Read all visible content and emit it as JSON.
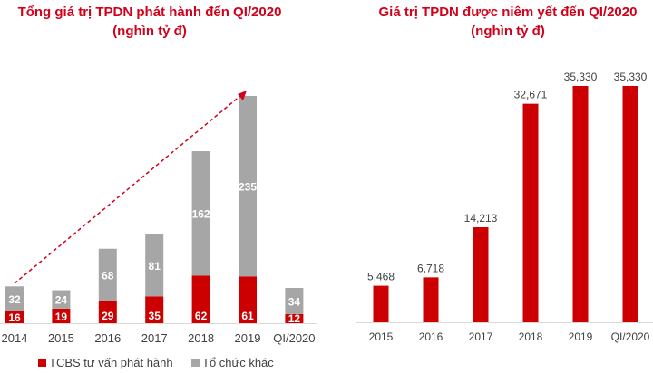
{
  "chart_data": [
    {
      "type": "bar",
      "stacked": true,
      "title": "Tổng giá trị TPDN phát hành đến QI/2020",
      "subtitle": "(nghìn tỷ đ)",
      "categories": [
        "2014",
        "2015",
        "2016",
        "2017",
        "2018",
        "2019",
        "QI/2020"
      ],
      "series": [
        {
          "name": "TCBS tư vấn phát hành",
          "color": "#cc0000",
          "values": [
            16,
            19,
            29,
            35,
            62,
            61,
            12
          ]
        },
        {
          "name": "Tổ chức khác",
          "color": "#a6a6a6",
          "values": [
            32,
            24,
            68,
            81,
            162,
            235,
            34
          ]
        }
      ],
      "annotation": "dashed red trend arrow from 2014 to 2019",
      "grid": false,
      "legend": "bottom"
    },
    {
      "type": "bar",
      "title": "Giá trị TPDN được niêm yết đến QI/2020",
      "subtitle": "(nghìn tỷ đ)",
      "categories": [
        "2015",
        "2016",
        "2017",
        "2018",
        "2019",
        "QI/2020"
      ],
      "values": [
        5468,
        6718,
        14213,
        32671,
        35330,
        35330
      ],
      "labels": [
        "5,468",
        "6,718",
        "14,213",
        "32,671",
        "35,330",
        "35,330"
      ],
      "color": "#cc0000",
      "grid": false
    }
  ]
}
